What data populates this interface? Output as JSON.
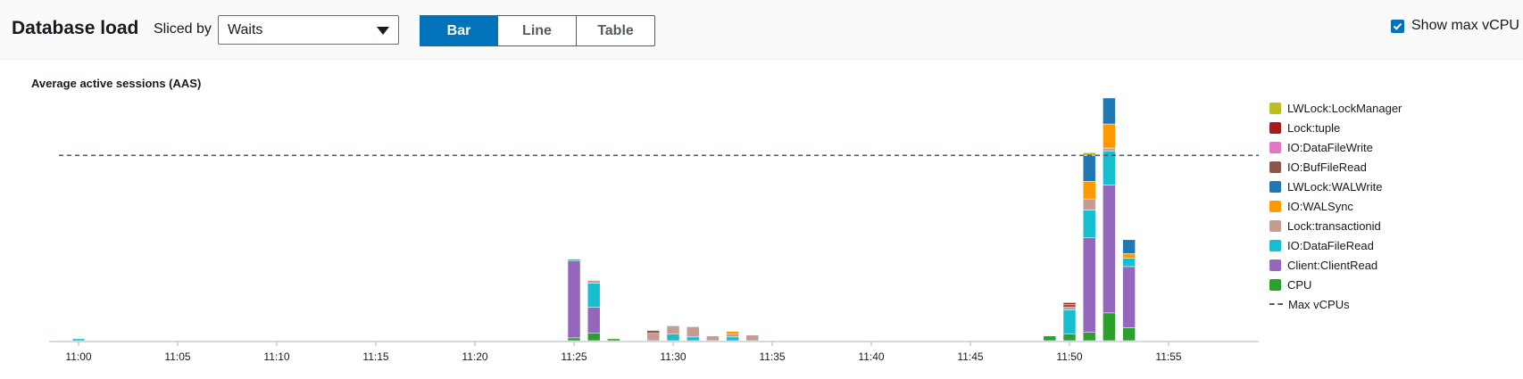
{
  "header": {
    "title": "Database load",
    "sliced_label": "Sliced by",
    "sliced_value": "Waits",
    "view_tabs": [
      "Bar",
      "Line",
      "Table"
    ],
    "active_tab": "Bar",
    "checkbox_label": "Show max vCPU",
    "checkbox_checked": true
  },
  "chart_data": {
    "type": "bar",
    "stacked": true,
    "title": "Average active sessions (AAS)",
    "xlabel": "",
    "ylabel": "",
    "x_ticks": [
      "11:00",
      "11:05",
      "11:10",
      "11:15",
      "11:20",
      "11:25",
      "11:30",
      "11:35",
      "11:40",
      "11:45",
      "11:50",
      "11:55"
    ],
    "bar_interval_minutes": 1,
    "x_start_time": "11:00",
    "ylim": [
      0,
      2.6
    ],
    "max_vcpu": 2,
    "max_vcpu_label": "Max vCPUs",
    "colors": {
      "CPU": "#2ca02c",
      "Client:ClientRead": "#9467bd",
      "IO:DataFileRead": "#17becf",
      "Lock:transactionid": "#c49c94",
      "IO:WALSync": "#ff9900",
      "LWLock:WALWrite": "#1f77b4",
      "IO:BufFileRead": "#8c564b",
      "IO:DataFileWrite": "#e377c2",
      "Lock:tuple": "#a51c1c",
      "LWLock:LockManager": "#bcbd22",
      "Max vCPUs": "#545b64"
    },
    "legend_order": [
      "LWLock:LockManager",
      "Lock:tuple",
      "IO:DataFileWrite",
      "IO:BufFileRead",
      "LWLock:WALWrite",
      "IO:WALSync",
      "Lock:transactionid",
      "IO:DataFileRead",
      "Client:ClientRead",
      "CPU",
      "Max vCPUs"
    ],
    "stack_order": [
      "CPU",
      "Client:ClientRead",
      "IO:DataFileRead",
      "Lock:transactionid",
      "IO:WALSync",
      "LWLock:WALWrite",
      "IO:BufFileRead",
      "IO:DataFileWrite",
      "Lock:tuple",
      "LWLock:LockManager"
    ],
    "bars": [
      {
        "time": "11:00",
        "values": {
          "IO:DataFileRead": 0.02
        }
      },
      {
        "time": "11:25",
        "values": {
          "CPU": 0.03,
          "Client:ClientRead": 0.83,
          "IO:DataFileRead": 0.02
        }
      },
      {
        "time": "11:26",
        "values": {
          "CPU": 0.08,
          "Client:ClientRead": 0.28,
          "IO:DataFileRead": 0.26,
          "Lock:transactionid": 0.03
        }
      },
      {
        "time": "11:27",
        "values": {
          "CPU": 0.02
        }
      },
      {
        "time": "11:29",
        "values": {
          "Lock:transactionid": 0.08,
          "IO:BufFileRead": 0.03
        }
      },
      {
        "time": "11:30",
        "values": {
          "IO:DataFileRead": 0.07,
          "Lock:transactionid": 0.09
        }
      },
      {
        "time": "11:31",
        "values": {
          "IO:DataFileRead": 0.04,
          "Lock:transactionid": 0.11
        }
      },
      {
        "time": "11:32",
        "values": {
          "Lock:transactionid": 0.05
        }
      },
      {
        "time": "11:33",
        "values": {
          "IO:DataFileRead": 0.04,
          "Lock:transactionid": 0.03,
          "IO:WALSync": 0.03
        }
      },
      {
        "time": "11:34",
        "values": {
          "Lock:transactionid": 0.06
        }
      },
      {
        "time": "11:49",
        "values": {
          "CPU": 0.05
        }
      },
      {
        "time": "11:50",
        "values": {
          "CPU": 0.07,
          "IO:DataFileRead": 0.26,
          "Lock:transactionid": 0.03,
          "IO:BufFileRead": 0.03,
          "Lock:tuple": 0.02
        }
      },
      {
        "time": "11:51",
        "values": {
          "CPU": 0.09,
          "Client:ClientRead": 1.02,
          "IO:DataFileRead": 0.3,
          "Lock:transactionid": 0.12,
          "IO:WALSync": 0.19,
          "LWLock:WALWrite": 0.28,
          "LWLock:LockManager": 0.03
        }
      },
      {
        "time": "11:52",
        "values": {
          "CPU": 0.3,
          "Client:ClientRead": 1.38,
          "IO:DataFileRead": 0.37,
          "Lock:transactionid": 0.03,
          "IO:WALSync": 0.26,
          "LWLock:WALWrite": 0.28
        }
      },
      {
        "time": "11:53",
        "values": {
          "CPU": 0.14,
          "Client:ClientRead": 0.66,
          "IO:DataFileRead": 0.09,
          "IO:WALSync": 0.05,
          "LWLock:WALWrite": 0.15
        }
      }
    ]
  }
}
